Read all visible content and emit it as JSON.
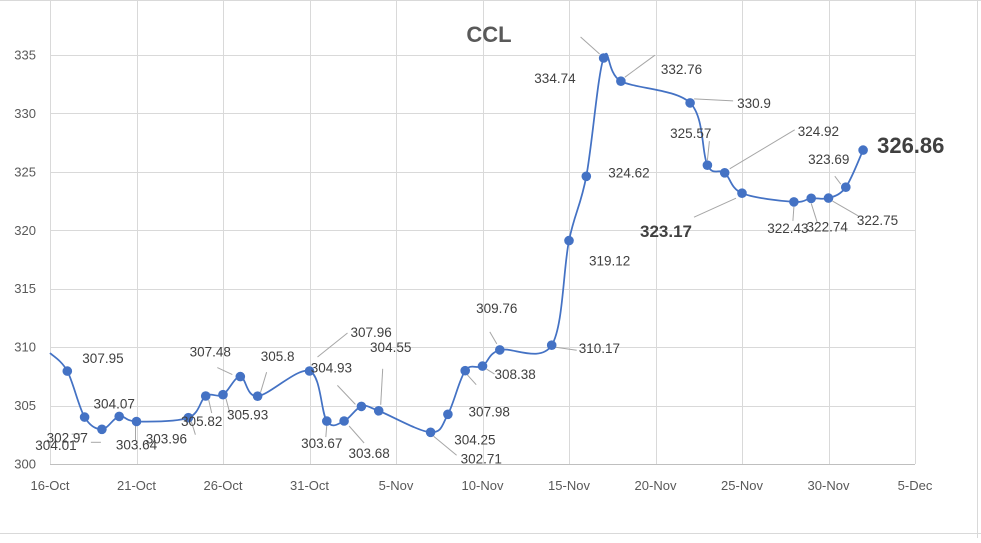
{
  "chart_data": {
    "type": "line",
    "title": "CCL",
    "xlabel": "",
    "ylabel": "",
    "ylim": [
      300,
      335
    ],
    "yticks": [
      300,
      305,
      310,
      315,
      320,
      325,
      330,
      335
    ],
    "xlim": [
      "2020-10-16",
      "2020-12-05"
    ],
    "xticks": [
      {
        "date": "2020-10-16",
        "label": "16-Oct"
      },
      {
        "date": "2020-10-21",
        "label": "21-Oct"
      },
      {
        "date": "2020-10-26",
        "label": "26-Oct"
      },
      {
        "date": "2020-10-31",
        "label": "31-Oct"
      },
      {
        "date": "2020-11-05",
        "label": "5-Nov"
      },
      {
        "date": "2020-11-10",
        "label": "10-Nov"
      },
      {
        "date": "2020-11-15",
        "label": "15-Nov"
      },
      {
        "date": "2020-11-20",
        "label": "20-Nov"
      },
      {
        "date": "2020-11-25",
        "label": "25-Nov"
      },
      {
        "date": "2020-11-30",
        "label": "30-Nov"
      },
      {
        "date": "2020-12-05",
        "label": "5-Dec"
      }
    ],
    "grid": true,
    "legend": "none",
    "color": "#4472c4",
    "series": [
      {
        "points": [
          {
            "x": "2020-10-16",
            "y": 309.5
          },
          {
            "x": "2020-10-17",
            "y": 307.95,
            "label": "307.95"
          },
          {
            "x": "2020-10-18",
            "y": 304.01,
            "label": "304.01"
          },
          {
            "x": "2020-10-19",
            "y": 302.97,
            "label": "302.97"
          },
          {
            "x": "2020-10-20",
            "y": 304.07,
            "label": "304.07"
          },
          {
            "x": "2020-10-21",
            "y": 303.64,
            "label": "303.64"
          },
          {
            "x": "2020-10-24",
            "y": 303.96,
            "label": "303.96"
          },
          {
            "x": "2020-10-25",
            "y": 305.82,
            "label": "305.82"
          },
          {
            "x": "2020-10-26",
            "y": 305.93,
            "label": "305.93"
          },
          {
            "x": "2020-10-27",
            "y": 307.48,
            "label": "307.48"
          },
          {
            "x": "2020-10-28",
            "y": 305.8,
            "label": "305.8"
          },
          {
            "x": "2020-10-31",
            "y": 307.96,
            "label": "307.96"
          },
          {
            "x": "2020-11-01",
            "y": 303.67,
            "label": "303.67"
          },
          {
            "x": "2020-11-02",
            "y": 303.68,
            "label": "303.68"
          },
          {
            "x": "2020-11-03",
            "y": 304.93,
            "label": "304.93"
          },
          {
            "x": "2020-11-04",
            "y": 304.55,
            "label": "304.55"
          },
          {
            "x": "2020-11-07",
            "y": 302.71,
            "label": "302.71"
          },
          {
            "x": "2020-11-08",
            "y": 304.25,
            "label": "304.25"
          },
          {
            "x": "2020-11-09",
            "y": 307.98,
            "label": "307.98"
          },
          {
            "x": "2020-11-10",
            "y": 308.38,
            "label": "308.38"
          },
          {
            "x": "2020-11-11",
            "y": 309.76,
            "label": "309.76"
          },
          {
            "x": "2020-11-14",
            "y": 310.17,
            "label": "310.17"
          },
          {
            "x": "2020-11-15",
            "y": 319.12,
            "label": "319.12"
          },
          {
            "x": "2020-11-16",
            "y": 324.62,
            "label": "324.62"
          },
          {
            "x": "2020-11-17",
            "y": 334.74,
            "label": "334.74"
          },
          {
            "x": "2020-11-18",
            "y": 332.76,
            "label": "332.76"
          },
          {
            "x": "2020-11-22",
            "y": 330.9,
            "label": "330.9"
          },
          {
            "x": "2020-11-23",
            "y": 325.57,
            "label": "325.57"
          },
          {
            "x": "2020-11-24",
            "y": 324.92,
            "label": "324.92"
          },
          {
            "x": "2020-11-25",
            "y": 323.17,
            "label": "323.17"
          },
          {
            "x": "2020-11-28",
            "y": 322.43,
            "label": "322.43"
          },
          {
            "x": "2020-11-29",
            "y": 322.74,
            "label": "322.74"
          },
          {
            "x": "2020-11-30",
            "y": 322.75,
            "label": "322.75"
          },
          {
            "x": "2020-12-01",
            "y": 323.69,
            "label": "323.69"
          },
          {
            "x": "2020-12-02",
            "y": 326.86,
            "label": "326.86"
          }
        ]
      }
    ]
  }
}
